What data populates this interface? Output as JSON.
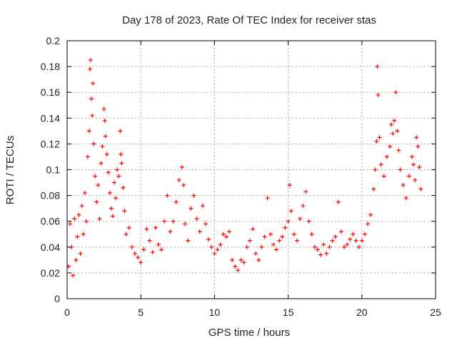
{
  "chart_data": {
    "type": "scatter",
    "title": "Day 178 of 2023, Rate Of TEC Index for receiver stas",
    "xlabel": "GPS time / hours",
    "ylabel": "ROTI / TECUs",
    "xlim": [
      0,
      25
    ],
    "ylim": [
      0,
      0.2
    ],
    "xticks": [
      0,
      5,
      10,
      15,
      20,
      25
    ],
    "yticks": [
      0,
      0.02,
      0.04,
      0.06,
      0.08,
      0.1,
      0.12,
      0.14,
      0.16,
      0.18,
      0.2
    ],
    "xtick_labels": [
      "0",
      "5",
      "10",
      "15",
      "20",
      "25"
    ],
    "ytick_labels": [
      "0",
      "0.02",
      "0.04",
      "0.06",
      "0.08",
      "0.1",
      "0.12",
      "0.14",
      "0.16",
      "0.18",
      "0.2"
    ],
    "grid": true,
    "marker": "plus",
    "color": "#ff0000",
    "series": [
      {
        "name": "ROTI",
        "points": [
          [
            0.1,
            0.025
          ],
          [
            0.2,
            0.058
          ],
          [
            0.3,
            0.04
          ],
          [
            0.4,
            0.018
          ],
          [
            0.5,
            0.062
          ],
          [
            0.6,
            0.03
          ],
          [
            0.7,
            0.048
          ],
          [
            0.8,
            0.065
          ],
          [
            0.9,
            0.035
          ],
          [
            1.0,
            0.072
          ],
          [
            1.1,
            0.05
          ],
          [
            1.2,
            0.082
          ],
          [
            1.3,
            0.06
          ],
          [
            1.4,
            0.11
          ],
          [
            1.5,
            0.13
          ],
          [
            1.55,
            0.178
          ],
          [
            1.6,
            0.185
          ],
          [
            1.65,
            0.155
          ],
          [
            1.7,
            0.142
          ],
          [
            1.75,
            0.167
          ],
          [
            1.8,
            0.12
          ],
          [
            1.9,
            0.095
          ],
          [
            2.0,
            0.075
          ],
          [
            2.1,
            0.088
          ],
          [
            2.2,
            0.062
          ],
          [
            2.3,
            0.105
          ],
          [
            2.4,
            0.118
          ],
          [
            2.5,
            0.147
          ],
          [
            2.55,
            0.138
          ],
          [
            2.6,
            0.126
          ],
          [
            2.7,
            0.112
          ],
          [
            2.8,
            0.098
          ],
          [
            2.9,
            0.082
          ],
          [
            3.0,
            0.07
          ],
          [
            3.1,
            0.064
          ],
          [
            3.2,
            0.09
          ],
          [
            3.3,
            0.078
          ],
          [
            3.4,
            0.1
          ],
          [
            3.5,
            0.095
          ],
          [
            3.6,
            0.13
          ],
          [
            3.65,
            0.112
          ],
          [
            3.7,
            0.105
          ],
          [
            3.8,
            0.086
          ],
          [
            3.9,
            0.068
          ],
          [
            4.0,
            0.05
          ],
          [
            4.2,
            0.055
          ],
          [
            4.4,
            0.04
          ],
          [
            4.6,
            0.035
          ],
          [
            4.8,
            0.032
          ],
          [
            5.0,
            0.028
          ],
          [
            5.2,
            0.038
          ],
          [
            5.4,
            0.054
          ],
          [
            5.6,
            0.045
          ],
          [
            5.8,
            0.036
          ],
          [
            6.0,
            0.055
          ],
          [
            6.2,
            0.042
          ],
          [
            6.4,
            0.038
          ],
          [
            6.6,
            0.06
          ],
          [
            6.8,
            0.08
          ],
          [
            7.0,
            0.052
          ],
          [
            7.2,
            0.06
          ],
          [
            7.4,
            0.075
          ],
          [
            7.6,
            0.092
          ],
          [
            7.8,
            0.102
          ],
          [
            7.9,
            0.088
          ],
          [
            8.0,
            0.058
          ],
          [
            8.2,
            0.045
          ],
          [
            8.4,
            0.07
          ],
          [
            8.6,
            0.08
          ],
          [
            8.8,
            0.062
          ],
          [
            9.0,
            0.052
          ],
          [
            9.2,
            0.072
          ],
          [
            9.4,
            0.058
          ],
          [
            9.6,
            0.046
          ],
          [
            9.8,
            0.04
          ],
          [
            10.0,
            0.035
          ],
          [
            10.2,
            0.038
          ],
          [
            10.4,
            0.042
          ],
          [
            10.6,
            0.05
          ],
          [
            10.8,
            0.048
          ],
          [
            11.0,
            0.052
          ],
          [
            11.2,
            0.03
          ],
          [
            11.4,
            0.025
          ],
          [
            11.6,
            0.022
          ],
          [
            11.8,
            0.03
          ],
          [
            12.0,
            0.028
          ],
          [
            12.2,
            0.04
          ],
          [
            12.4,
            0.045
          ],
          [
            12.6,
            0.054
          ],
          [
            12.8,
            0.035
          ],
          [
            13.0,
            0.03
          ],
          [
            13.2,
            0.04
          ],
          [
            13.4,
            0.048
          ],
          [
            13.6,
            0.078
          ],
          [
            13.8,
            0.05
          ],
          [
            14.0,
            0.042
          ],
          [
            14.2,
            0.038
          ],
          [
            14.4,
            0.045
          ],
          [
            14.6,
            0.048
          ],
          [
            14.8,
            0.055
          ],
          [
            15.0,
            0.06
          ],
          [
            15.1,
            0.088
          ],
          [
            15.2,
            0.068
          ],
          [
            15.4,
            0.05
          ],
          [
            15.6,
            0.045
          ],
          [
            15.8,
            0.062
          ],
          [
            16.0,
            0.072
          ],
          [
            16.2,
            0.083
          ],
          [
            16.4,
            0.06
          ],
          [
            16.6,
            0.05
          ],
          [
            16.8,
            0.04
          ],
          [
            17.0,
            0.038
          ],
          [
            17.2,
            0.034
          ],
          [
            17.4,
            0.042
          ],
          [
            17.6,
            0.035
          ],
          [
            17.8,
            0.04
          ],
          [
            18.0,
            0.045
          ],
          [
            18.2,
            0.048
          ],
          [
            18.4,
            0.075
          ],
          [
            18.6,
            0.052
          ],
          [
            18.8,
            0.04
          ],
          [
            19.0,
            0.042
          ],
          [
            19.2,
            0.046
          ],
          [
            19.4,
            0.05
          ],
          [
            19.6,
            0.045
          ],
          [
            19.8,
            0.04
          ],
          [
            20.0,
            0.045
          ],
          [
            20.2,
            0.05
          ],
          [
            20.4,
            0.058
          ],
          [
            20.6,
            0.065
          ],
          [
            20.8,
            0.085
          ],
          [
            20.9,
            0.1
          ],
          [
            21.0,
            0.122
          ],
          [
            21.05,
            0.18
          ],
          [
            21.1,
            0.158
          ],
          [
            21.2,
            0.125
          ],
          [
            21.3,
            0.104
          ],
          [
            21.5,
            0.095
          ],
          [
            21.7,
            0.11
          ],
          [
            21.9,
            0.118
          ],
          [
            22.0,
            0.135
          ],
          [
            22.1,
            0.128
          ],
          [
            22.2,
            0.138
          ],
          [
            22.3,
            0.16
          ],
          [
            22.4,
            0.13
          ],
          [
            22.5,
            0.115
          ],
          [
            22.6,
            0.1
          ],
          [
            22.8,
            0.088
          ],
          [
            23.0,
            0.078
          ],
          [
            23.2,
            0.095
          ],
          [
            23.4,
            0.11
          ],
          [
            23.5,
            0.104
          ],
          [
            23.6,
            0.092
          ],
          [
            23.7,
            0.125
          ],
          [
            23.8,
            0.118
          ],
          [
            23.9,
            0.102
          ],
          [
            24.0,
            0.085
          ]
        ]
      }
    ]
  }
}
